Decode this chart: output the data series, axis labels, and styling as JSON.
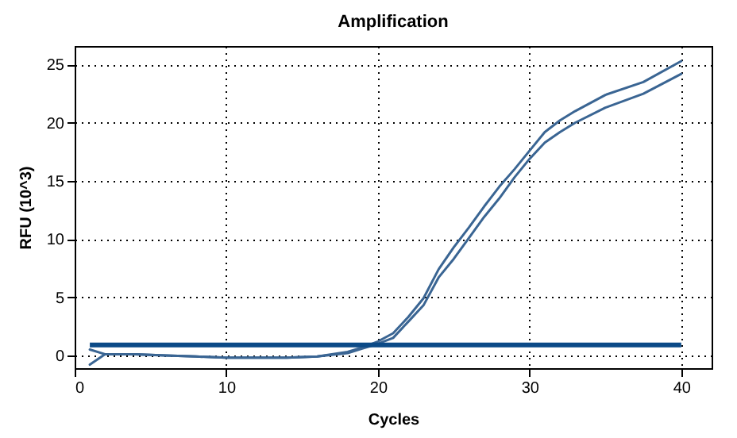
{
  "chart_data": {
    "type": "line",
    "title": "Amplification",
    "xlabel": "Cycles",
    "ylabel": "RFU (10^3)",
    "xlim": [
      0,
      42
    ],
    "ylim": [
      -1.1,
      26.6
    ],
    "xticks": [
      0,
      10,
      20,
      30,
      40
    ],
    "yticks": [
      0,
      5,
      10,
      15,
      20,
      25
    ],
    "grid": true,
    "line_style": "solid",
    "x": [
      1,
      2,
      4,
      6,
      8,
      10,
      12,
      14,
      16,
      18,
      19,
      20,
      21,
      22,
      23,
      24,
      25,
      26,
      27,
      28,
      29,
      30,
      31,
      32,
      33,
      35,
      37.5,
      40
    ],
    "series": [
      {
        "color": "#3a6593",
        "values": [
          0.5,
          0.1,
          0.1,
          0,
          -0.1,
          -0.2,
          -0.2,
          -0.2,
          -0.1,
          0.3,
          0.7,
          1.2,
          1.9,
          3.3,
          4.9,
          7.4,
          9.3,
          11.0,
          12.8,
          14.5,
          16.0,
          17.6,
          19.2,
          20.2,
          21.0,
          22.4,
          23.5,
          25.3
        ]
      },
      {
        "color": "#3a6593",
        "values": [
          -0.8,
          0.1,
          0.1,
          0,
          -0.1,
          -0.2,
          -0.2,
          -0.2,
          -0.1,
          0.2,
          0.6,
          1.0,
          1.5,
          2.9,
          4.3,
          6.7,
          8.3,
          10.1,
          11.9,
          13.5,
          15.3,
          16.9,
          18.3,
          19.2,
          20.0,
          21.3,
          22.5,
          24.2
        ]
      }
    ],
    "ref_lines": [
      {
        "axis": "y",
        "value": 0.9,
        "color": "#0b4a87"
      }
    ]
  }
}
